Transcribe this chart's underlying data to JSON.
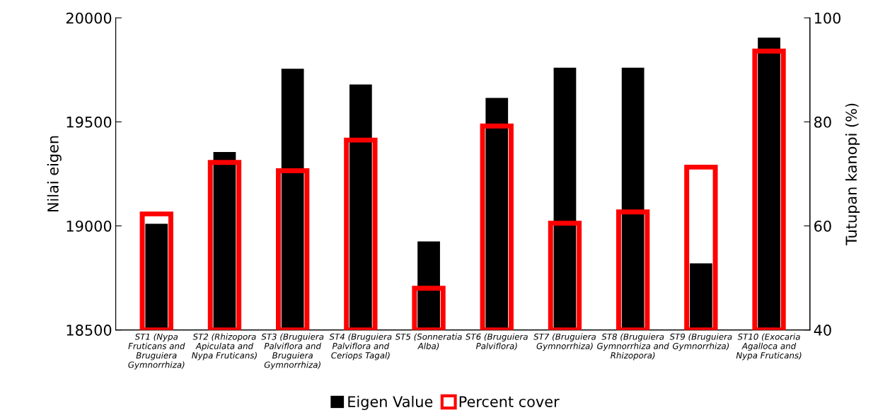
{
  "chart_data": {
    "type": "bar",
    "ylabel": "Nilai eigen",
    "y2label": "Tutupan kanopi (%)",
    "categories": [
      "ST1 (Nypa Fruticans and Bruguiera Gymnorrhiza)",
      "ST2 (Rhizopora Apiculata and Nypa Fruticans)",
      "ST3 (Bruguiera Palviflora and Bruguiera Gymnorrhiza)",
      "ST4 (Bruguiera Palviflora and Ceriops Tagal)",
      "ST5 (Sonneratia Alba)",
      "ST6 (Bruguiera Palviflora)",
      "ST7 (Bruguiera Gymnorrhiza)",
      "ST8 (Bruguiera Gymnorrhiza and Rhizopora)",
      "ST9 (Bruguiera Gymnorrhiza)",
      "ST10 (Exocaria Agalloca and Nypa Fruticans)"
    ],
    "series": [
      {
        "name": "Eigen Value",
        "color": "#000000",
        "values": [
          19010,
          19355,
          19755,
          19680,
          18925,
          19615,
          19760,
          19760,
          18820,
          19905
        ]
      },
      {
        "name": "Percent cover",
        "color": "#ff0000",
        "axis": "y2",
        "values": [
          62.3,
          72.2,
          70.6,
          76.5,
          48.0,
          79.2,
          60.5,
          62.7,
          71.3,
          93.6
        ]
      }
    ],
    "ylim": [
      18500,
      20000
    ],
    "yticks": [
      18500,
      19000,
      19500,
      20000
    ],
    "y2lim": [
      40,
      100
    ],
    "y2ticks": [
      40,
      60,
      80,
      100
    ],
    "grid": false,
    "legend": "bottom"
  }
}
